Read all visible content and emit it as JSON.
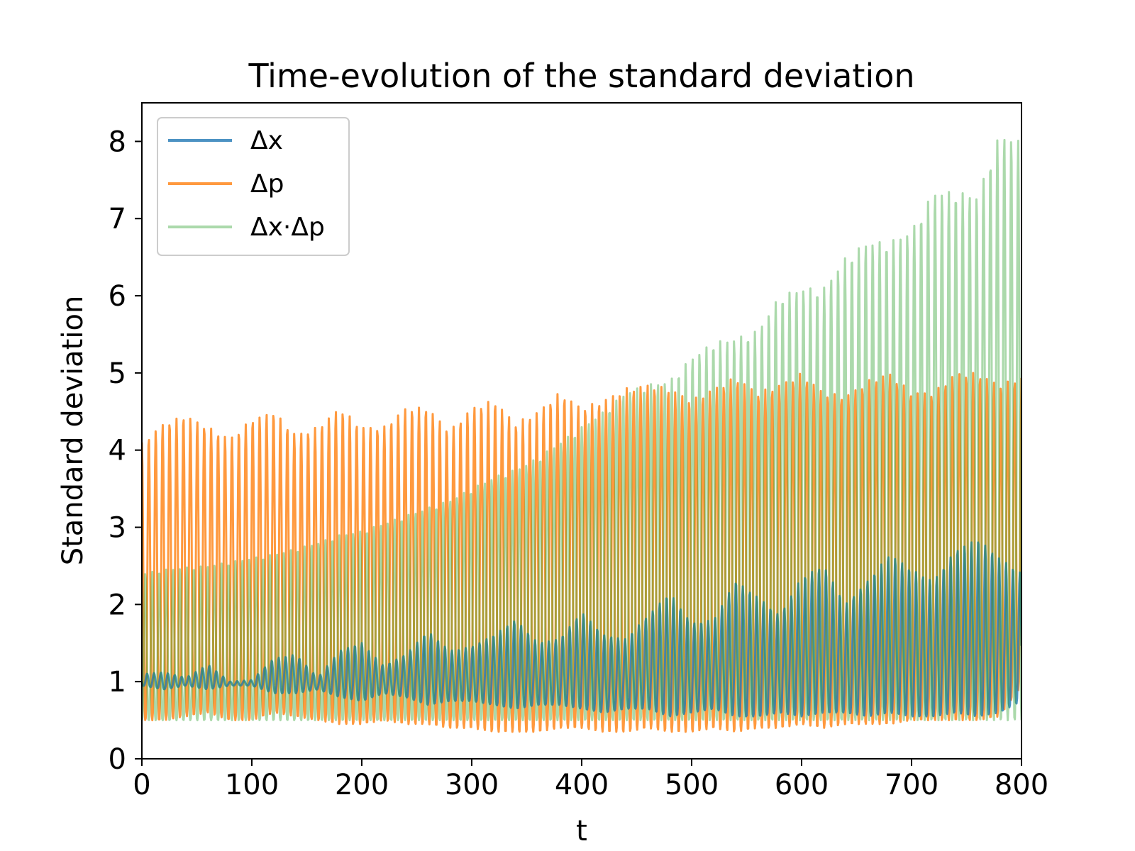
{
  "chart_data": {
    "type": "line",
    "title": "Time-evolution of the standard deviation",
    "xlabel": "t",
    "ylabel": "Standard deviation",
    "xlim": [
      0,
      800
    ],
    "ylim": [
      0,
      8.5
    ],
    "xticks": [
      0,
      100,
      200,
      300,
      400,
      500,
      600,
      700,
      800
    ],
    "yticks": [
      0,
      1,
      2,
      3,
      4,
      5,
      6,
      7,
      8
    ],
    "grid": false,
    "legend_position": "upper-left",
    "oscillation_period": 6.3,
    "series": [
      {
        "name": "Δx",
        "color": "#1f77b4",
        "opacity": 0.8,
        "envelope_t": [
          0,
          20,
          40,
          60,
          80,
          100,
          120,
          140,
          160,
          180,
          200,
          220,
          240,
          260,
          280,
          300,
          320,
          340,
          360,
          380,
          400,
          420,
          440,
          460,
          480,
          500,
          520,
          540,
          560,
          580,
          600,
          620,
          640,
          660,
          680,
          700,
          720,
          740,
          760,
          780,
          800
        ],
        "upper": [
          1.1,
          1.12,
          1.05,
          1.22,
          1.0,
          1.02,
          1.3,
          1.35,
          1.05,
          1.4,
          1.5,
          1.2,
          1.35,
          1.65,
          1.4,
          1.45,
          1.6,
          1.8,
          1.5,
          1.55,
          1.9,
          1.6,
          1.55,
          1.85,
          2.15,
          1.75,
          1.8,
          2.3,
          2.1,
          1.85,
          2.35,
          2.5,
          2.0,
          2.3,
          2.65,
          2.45,
          2.3,
          2.7,
          2.85,
          2.6,
          2.4
        ],
        "lower": [
          0.95,
          0.9,
          0.95,
          0.9,
          0.95,
          0.95,
          0.85,
          0.85,
          0.9,
          0.8,
          0.75,
          0.85,
          0.8,
          0.7,
          0.75,
          0.75,
          0.7,
          0.65,
          0.7,
          0.7,
          0.65,
          0.6,
          0.65,
          0.65,
          0.55,
          0.6,
          0.65,
          0.55,
          0.55,
          0.6,
          0.55,
          0.6,
          0.6,
          0.55,
          0.6,
          0.55,
          0.55,
          0.6,
          0.55,
          0.6,
          0.75
        ]
      },
      {
        "name": "Δp",
        "color": "#ff7f0e",
        "opacity": 0.8,
        "envelope_t": [
          0,
          20,
          40,
          60,
          80,
          100,
          120,
          140,
          160,
          180,
          200,
          220,
          240,
          260,
          280,
          300,
          320,
          340,
          360,
          380,
          400,
          420,
          440,
          460,
          480,
          500,
          520,
          540,
          560,
          580,
          600,
          620,
          640,
          660,
          680,
          700,
          720,
          740,
          760,
          780,
          800
        ],
        "upper": [
          4.1,
          4.35,
          4.45,
          4.3,
          4.15,
          4.4,
          4.5,
          4.2,
          4.3,
          4.55,
          4.3,
          4.3,
          4.55,
          4.55,
          4.25,
          4.55,
          4.65,
          4.35,
          4.5,
          4.75,
          4.55,
          4.65,
          4.8,
          4.85,
          4.8,
          4.65,
          4.8,
          4.95,
          4.75,
          4.85,
          5.0,
          4.75,
          4.7,
          4.9,
          5.0,
          4.75,
          4.75,
          5.0,
          5.0,
          4.85,
          4.95
        ],
        "lower": [
          0.5,
          0.5,
          0.55,
          0.6,
          0.5,
          0.5,
          0.6,
          0.55,
          0.5,
          0.45,
          0.45,
          0.5,
          0.45,
          0.45,
          0.4,
          0.4,
          0.35,
          0.35,
          0.35,
          0.4,
          0.4,
          0.35,
          0.35,
          0.4,
          0.35,
          0.35,
          0.4,
          0.35,
          0.4,
          0.4,
          0.45,
          0.4,
          0.45,
          0.45,
          0.45,
          0.5,
          0.5,
          0.5,
          0.5,
          0.55,
          0.95
        ]
      },
      {
        "name": "Δx·Δp",
        "color": "#2ca02c",
        "opacity": 0.4,
        "envelope_t": [
          0,
          20,
          40,
          60,
          80,
          100,
          120,
          140,
          160,
          180,
          200,
          220,
          240,
          260,
          280,
          300,
          320,
          340,
          360,
          380,
          400,
          420,
          440,
          460,
          480,
          500,
          520,
          540,
          560,
          580,
          600,
          620,
          640,
          660,
          680,
          700,
          720,
          740,
          760,
          780,
          800
        ],
        "upper": [
          2.4,
          2.45,
          2.48,
          2.5,
          2.55,
          2.6,
          2.65,
          2.72,
          2.8,
          2.9,
          2.95,
          3.05,
          3.15,
          3.25,
          3.35,
          3.5,
          3.65,
          3.75,
          3.9,
          4.1,
          4.3,
          4.5,
          4.75,
          4.85,
          4.9,
          5.2,
          5.4,
          5.45,
          5.55,
          6.0,
          6.1,
          6.1,
          6.5,
          6.7,
          6.7,
          6.85,
          7.35,
          7.35,
          7.3,
          8.1,
          8.0
        ],
        "lower": [
          0.5,
          0.5,
          0.5,
          0.5,
          0.5,
          0.5,
          0.5,
          0.5,
          0.5,
          0.5,
          0.5,
          0.5,
          0.5,
          0.5,
          0.5,
          0.5,
          0.5,
          0.5,
          0.5,
          0.5,
          0.5,
          0.5,
          0.5,
          0.5,
          0.5,
          0.5,
          0.5,
          0.5,
          0.5,
          0.5,
          0.5,
          0.5,
          0.5,
          0.5,
          0.5,
          0.5,
          0.5,
          0.5,
          0.5,
          0.5,
          0.5
        ]
      }
    ]
  }
}
